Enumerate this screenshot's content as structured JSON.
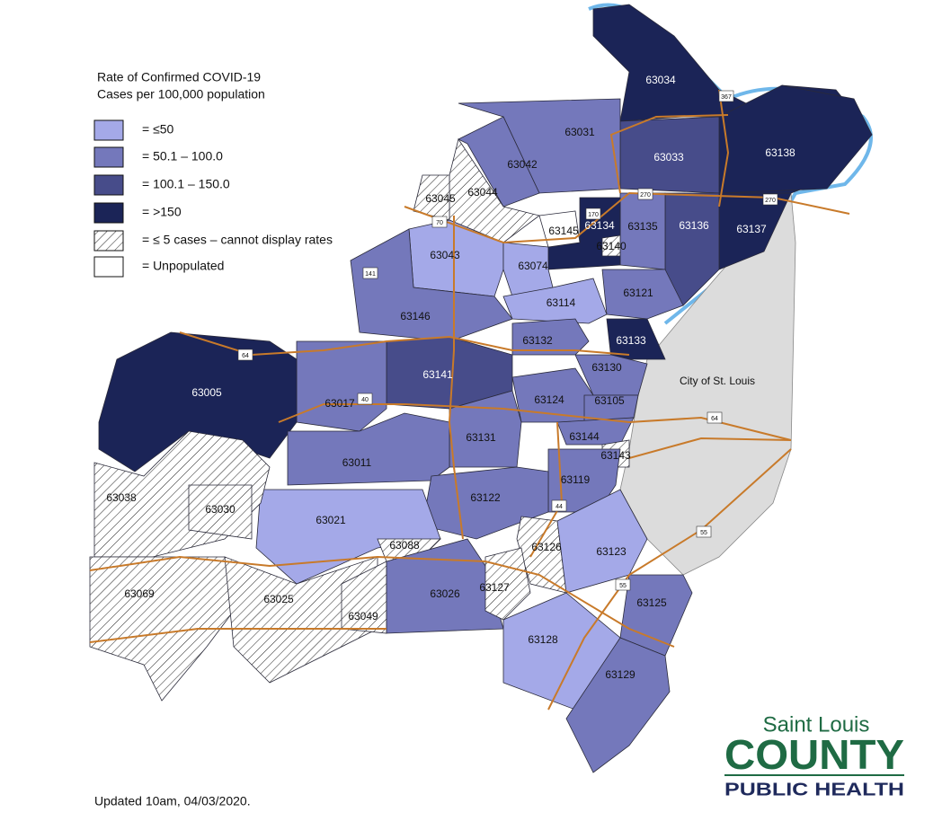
{
  "legend": {
    "title": [
      "Rate of Confirmed COVID-19",
      "Cases per 100,000 population"
    ],
    "items": [
      {
        "label": "= ≤50",
        "color": "#a4a9e8"
      },
      {
        "label": "= 50.1 – 100.0",
        "color": "#7478bb"
      },
      {
        "label": "= 100.1 – 150.0",
        "color": "#474c8a"
      },
      {
        "label": "= >150",
        "color": "#1b2457"
      },
      {
        "label": "= ≤ 5 cases – cannot display rates",
        "color": "hatch"
      },
      {
        "label": "= Unpopulated",
        "color": "#ffffff"
      }
    ]
  },
  "zones": [
    {
      "label": "63034",
      "legend_item": 3
    },
    {
      "label": "63138",
      "legend_item": 3
    },
    {
      "label": "63137",
      "legend_item": 3
    },
    {
      "label": "63033",
      "legend_item": 2
    },
    {
      "label": "63031",
      "legend_item": 1
    },
    {
      "label": "63042",
      "legend_item": 1
    },
    {
      "label": "63044",
      "legend_item": 4
    },
    {
      "label": "63045",
      "legend_item": 4
    },
    {
      "label": "63136",
      "legend_item": 2
    },
    {
      "label": "63135",
      "legend_item": 1
    },
    {
      "label": "63134",
      "legend_item": 3
    },
    {
      "label": "63145",
      "legend_item": 5
    },
    {
      "label": "63140",
      "legend_item": 4
    },
    {
      "label": "63043",
      "legend_item": 0
    },
    {
      "label": "63074",
      "legend_item": 0
    },
    {
      "label": "63114",
      "legend_item": 0
    },
    {
      "label": "63121",
      "legend_item": 1
    },
    {
      "label": "63146",
      "legend_item": 1
    },
    {
      "label": "63133",
      "legend_item": 3
    },
    {
      "label": "63132",
      "legend_item": 1
    },
    {
      "label": "63141",
      "legend_item": 2
    },
    {
      "label": "63017",
      "legend_item": 1
    },
    {
      "label": "63005",
      "legend_item": 3
    },
    {
      "label": "63130",
      "legend_item": 1
    },
    {
      "label": "63124",
      "legend_item": 1
    },
    {
      "label": "63105",
      "legend_item": 1
    },
    {
      "label": "63131",
      "legend_item": 1
    },
    {
      "label": "63011",
      "legend_item": 1
    },
    {
      "label": "63144",
      "legend_item": 1
    },
    {
      "label": "63143",
      "legend_item": 4
    },
    {
      "label": "63119",
      "legend_item": 1
    },
    {
      "label": "63122",
      "legend_item": 1
    },
    {
      "label": "63021",
      "legend_item": 0
    },
    {
      "label": "63038",
      "legend_item": 4
    },
    {
      "label": "63030",
      "legend_item": 4
    },
    {
      "label": "63069",
      "legend_item": 4
    },
    {
      "label": "63025",
      "legend_item": 4
    },
    {
      "label": "63049",
      "legend_item": 4
    },
    {
      "label": "63088",
      "legend_item": 4
    },
    {
      "label": "63026",
      "legend_item": 1
    },
    {
      "label": "63126",
      "legend_item": 4
    },
    {
      "label": "63127",
      "legend_item": 4
    },
    {
      "label": "63123",
      "legend_item": 0
    },
    {
      "label": "63125",
      "legend_item": 1
    },
    {
      "label": "63128",
      "legend_item": 0
    },
    {
      "label": "63129",
      "legend_item": 1
    }
  ],
  "city": "City of St. Louis",
  "highways": [
    "70",
    "270",
    "270",
    "64",
    "40",
    "55",
    "44",
    "141",
    "367",
    "170",
    "64",
    "55"
  ],
  "updated": "Updated 10am, 04/03/2020.",
  "logo": {
    "line1": "Saint Louis",
    "line2": "COUNTY",
    "line3": "PUBLIC HEALTH"
  }
}
